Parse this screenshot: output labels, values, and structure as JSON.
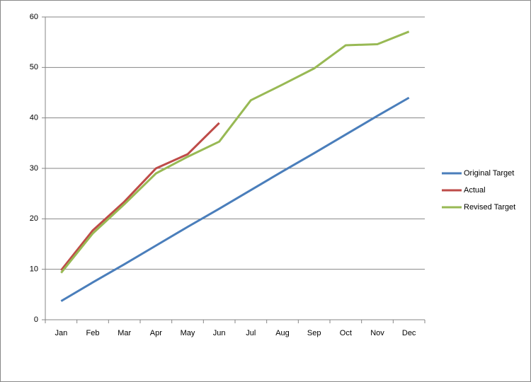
{
  "chart_data": {
    "type": "line",
    "categories": [
      "Jan",
      "Feb",
      "Mar",
      "Apr",
      "May",
      "Jun",
      "Jul",
      "Aug",
      "Sep",
      "Oct",
      "Nov",
      "Dec"
    ],
    "series": [
      {
        "name": "Original Target",
        "color": "#4a7ebb",
        "values": [
          3.7,
          7.4,
          11.0,
          14.7,
          18.4,
          22.0,
          25.7,
          29.4,
          33.0,
          36.7,
          40.4,
          44.0
        ]
      },
      {
        "name": "Actual",
        "color": "#be4b48",
        "values": [
          9.8,
          17.7,
          23.4,
          30.0,
          32.8,
          39.0,
          null,
          null,
          null,
          null,
          null,
          null
        ]
      },
      {
        "name": "Revised Target",
        "color": "#98b954",
        "values": [
          9.3,
          17.1,
          22.9,
          29.0,
          32.3,
          35.3,
          43.5,
          46.6,
          49.8,
          54.4,
          54.6,
          57.1
        ]
      }
    ],
    "ylim": [
      0,
      60
    ],
    "yticks": [
      0,
      10,
      20,
      30,
      40,
      50,
      60
    ],
    "grid": true,
    "legend": "right"
  }
}
